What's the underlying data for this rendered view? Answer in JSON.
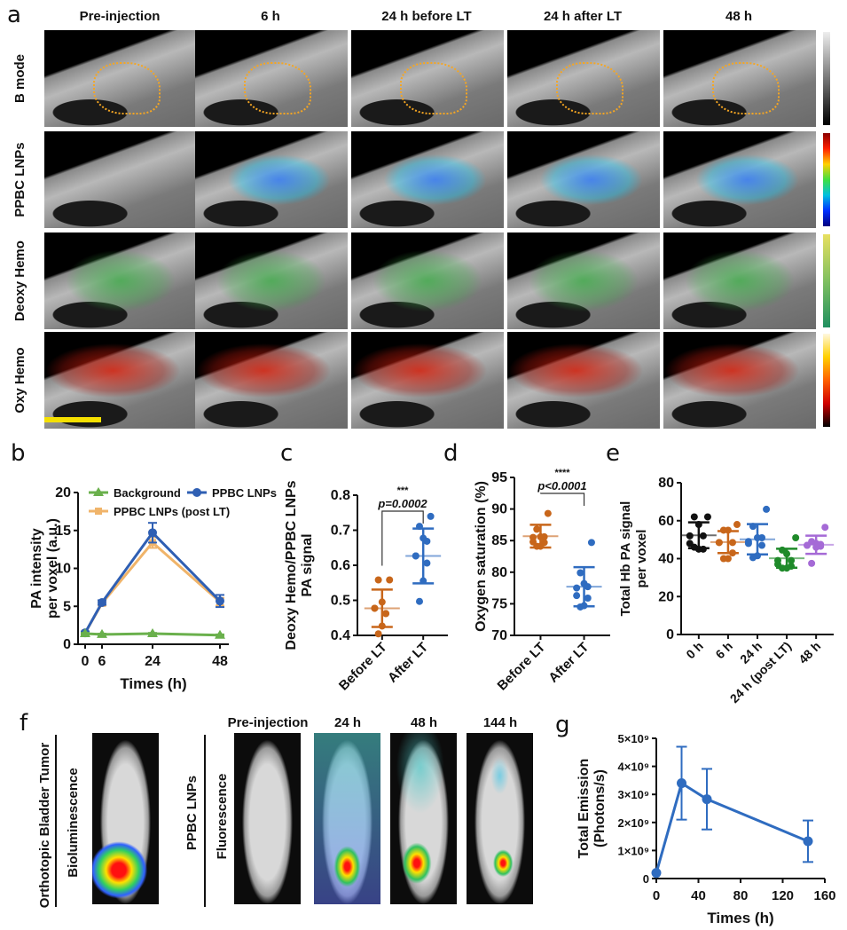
{
  "panel_a": {
    "letter": "a",
    "columns": [
      "Pre-injection",
      "6 h",
      "24 h before LT",
      "24 h after LT",
      "48 h"
    ],
    "rows": [
      "B mode",
      "PPBC LNPs",
      "Deoxy Hemo",
      "Oxy Hemo"
    ],
    "colorbars": [
      "grayscale",
      "jet",
      "green-yellow",
      "hot"
    ],
    "colors": {
      "roi_outline": "#f5a623",
      "scale_bar": "#f5e000"
    }
  },
  "panel_f": {
    "letter": "f",
    "left_label": "Orthotopic Bladder Tumor",
    "left_sublabel": "Bioluminescence",
    "right_label": "PPBC LNPs",
    "right_sublabel": "Fluorescence",
    "columns": [
      "Pre-injection",
      "24 h",
      "48 h",
      "144 h"
    ]
  },
  "chart_data": [
    {
      "id": "b",
      "letter": "b",
      "type": "line",
      "xlabel": "Times (h)",
      "ylabel": [
        "PA intensity",
        "per voxel (a.u.)"
      ],
      "x": [
        0,
        6,
        24,
        48
      ],
      "xticks": [
        "0",
        "6",
        "24",
        "48"
      ],
      "ylim": [
        0,
        20
      ],
      "yticks": [
        "0",
        "5",
        "10",
        "15",
        "20"
      ],
      "legend_position": "top",
      "series": [
        {
          "name": "Background",
          "marker": "triangle",
          "color": "#6ab04c",
          "values": [
            1.4,
            1.3,
            1.4,
            1.2
          ],
          "err": [
            0.1,
            0.1,
            0.1,
            0.1
          ]
        },
        {
          "name": "PPBC LNPs",
          "marker": "circle",
          "color": "#2f5fb3",
          "values": [
            1.5,
            5.5,
            14.7,
            5.7
          ],
          "err": [
            0.2,
            0.3,
            1.3,
            0.8
          ]
        },
        {
          "name": "PPBC LNPs (post LT)",
          "marker": "square",
          "color": "#f0b46a",
          "values": [
            1.5,
            5.4,
            13.4,
            5.6
          ],
          "err": [
            0.2,
            0.3,
            0.7,
            0.5
          ]
        }
      ]
    },
    {
      "id": "c",
      "letter": "c",
      "type": "scatter",
      "ylabel": [
        "Deoxy Hemo/PPBC LNPs",
        "PA signal"
      ],
      "categories": [
        "Before LT",
        "After LT"
      ],
      "ylim": [
        0.4,
        0.85
      ],
      "yticks": [
        "0.4",
        "0.5",
        "0.6",
        "0.7",
        "0.8"
      ],
      "stars": "***",
      "pvalue": "p=0.0002",
      "series": [
        {
          "name": "Before LT",
          "color": "#c8661a",
          "mean": 0.487,
          "sd": 0.06,
          "points": [
            0.578,
            0.578,
            0.507,
            0.47,
            0.487,
            0.487,
            0.47,
            0.43,
            0.405
          ]
        },
        {
          "name": "After LT",
          "color": "#2f6cc0",
          "mean": 0.655,
          "sd": 0.088,
          "points": [
            0.782,
            0.75,
            0.712,
            0.702,
            0.655,
            0.655,
            0.632,
            0.575,
            0.509
          ]
        }
      ]
    },
    {
      "id": "d",
      "letter": "d",
      "type": "scatter",
      "ylabel": [
        "Oxygen saturation (%)"
      ],
      "categories": [
        "Before LT",
        "After LT"
      ],
      "ylim": [
        70,
        95
      ],
      "yticks": [
        "70",
        "75",
        "80",
        "85",
        "90",
        "95"
      ],
      "stars": "****",
      "pvalue": "p<0.0001",
      "series": [
        {
          "name": "Before LT",
          "color": "#c8661a",
          "mean": 85.7,
          "sd": 1.8,
          "points": [
            89.3,
            86.8,
            85.6,
            85.6,
            85.5,
            84.8,
            84.7,
            84.1,
            84.1
          ]
        },
        {
          "name": "After LT",
          "color": "#2f6cc0",
          "mean": 77.7,
          "sd": 3.1,
          "points": [
            84.7,
            79.9,
            78.2,
            77.7,
            77.5,
            76.3,
            75.9,
            74.7,
            74.5
          ]
        }
      ]
    },
    {
      "id": "e",
      "letter": "e",
      "type": "scatter",
      "ylabel": [
        "Total Hb PA signal",
        "per voxel"
      ],
      "categories": [
        "0 h",
        "6 h",
        "24 h",
        "24 h (post LT)",
        "48 h"
      ],
      "ylim": [
        0,
        80
      ],
      "yticks": [
        "0",
        "20",
        "40",
        "60",
        "80"
      ],
      "series": [
        {
          "name": "0 h",
          "color": "#111111",
          "mean": 52.3,
          "sd": 6.8,
          "points": [
            62,
            62,
            58,
            52,
            52,
            48,
            45,
            45,
            46
          ]
        },
        {
          "name": "6 h",
          "color": "#c8661a",
          "mean": 48.7,
          "sd": 5.8,
          "points": [
            58,
            55,
            55,
            48.5,
            48.5,
            48.5,
            43,
            40,
            40
          ]
        },
        {
          "name": "24 h",
          "color": "#2f6cc0",
          "mean": 50.2,
          "sd": 8,
          "points": [
            66,
            57,
            51,
            51,
            49,
            48,
            47,
            41.5,
            40.5
          ]
        },
        {
          "name": "24 h (post LT)",
          "color": "#1f8a2a",
          "mean": 40.2,
          "sd": 5,
          "points": [
            51,
            44.5,
            42.5,
            39,
            39,
            37,
            36,
            35,
            35
          ]
        },
        {
          "name": "48 h",
          "color": "#a56ad6",
          "mean": 47.3,
          "sd": 4.8,
          "points": [
            56.5,
            49,
            48,
            47.5,
            47,
            47,
            46.5,
            46,
            37.5
          ]
        }
      ]
    },
    {
      "id": "g",
      "letter": "g",
      "type": "line",
      "xlabel": "Times (h)",
      "ylabel": [
        "Total Emission",
        "(Photons/s)"
      ],
      "x": [
        0,
        24,
        48,
        144
      ],
      "xlim": [
        0,
        160
      ],
      "xticks": [
        "0",
        "40",
        "80",
        "120",
        "160"
      ],
      "ylim": [
        0,
        5000000000.0
      ],
      "yticks": [
        "0",
        "1×10⁹",
        "2×10⁹",
        "3×10⁹",
        "4×10⁹",
        "5×10⁹"
      ],
      "series": [
        {
          "name": "Total Emission",
          "color": "#2f6cc0",
          "values": [
            200000000.0,
            3400000000.0,
            2830000000.0,
            1330000000.0
          ],
          "err": [
            0,
            1300000000.0,
            1080000000.0,
            740000000.0
          ]
        }
      ]
    }
  ]
}
